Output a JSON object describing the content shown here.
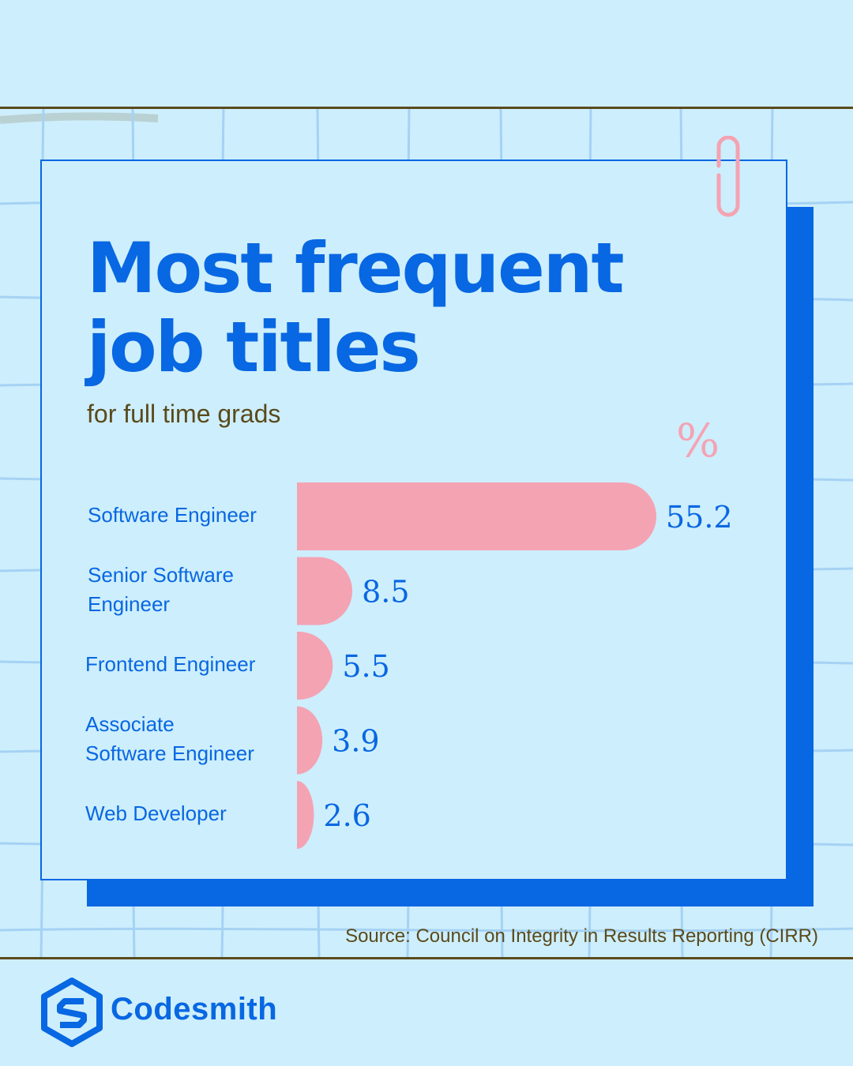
{
  "colors": {
    "background": "#cdeefc",
    "brand_blue": "#0867e2",
    "bar_pink": "#f4a3b3",
    "text_brown": "#5a4a1c",
    "grid_line": "#a5d2f4"
  },
  "header": {
    "title_line1": "Most frequent",
    "title_line2": "job titles",
    "subtitle": "for full time grads",
    "unit": "%"
  },
  "chart_data": {
    "type": "bar",
    "orientation": "horizontal",
    "title": "Most frequent job titles",
    "subtitle": "for full time grads",
    "unit": "%",
    "categories": [
      "Software Engineer",
      "Senior Software Engineer",
      "Frontend Engineer",
      "Associate Software Engineer",
      "Web Developer"
    ],
    "category_lines": [
      [
        "Software Engineer"
      ],
      [
        "Senior Software",
        "Engineer"
      ],
      [
        "Frontend Engineer"
      ],
      [
        "Associate",
        "Software Engineer"
      ],
      [
        "Web Developer"
      ]
    ],
    "values": [
      55.2,
      8.5,
      5.5,
      3.9,
      2.6
    ],
    "value_labels": [
      "55.2",
      "8.5",
      "5.5",
      "3.9",
      "2.6"
    ],
    "xlim": [
      0,
      55.2
    ],
    "grid": false
  },
  "footer": {
    "source": "Source: Council on Integrity in Results Reporting (CIRR)",
    "brand_name": "Codesmith",
    "logo_icon": "codesmith-hexagon-s-icon"
  }
}
